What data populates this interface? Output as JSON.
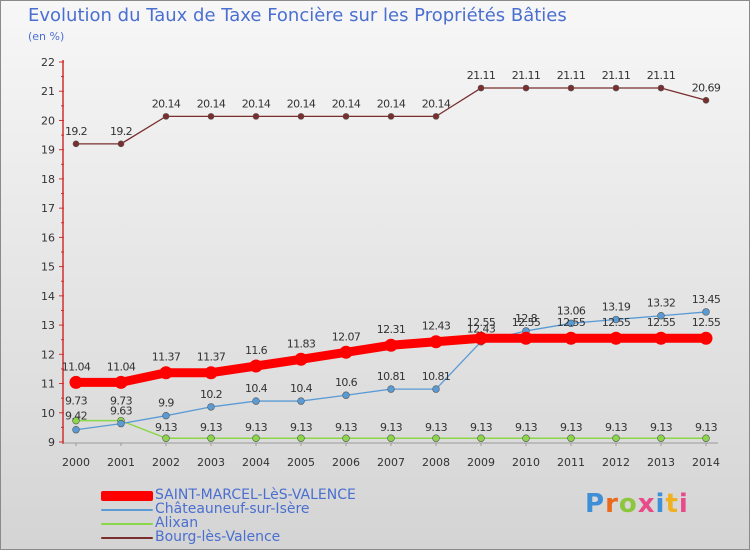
{
  "title": "Evolution du Taux de Taxe Foncière sur les Propriétés Bâties",
  "unit": "(en %)",
  "logo": {
    "text": "Proxiti",
    "colors": [
      "#3f8fd8",
      "#e86a1a",
      "#8cc63f",
      "#e84a8a",
      "#3f8fd8",
      "#f0b020",
      "#e84a8a"
    ]
  },
  "chart_data": {
    "type": "line",
    "title": "Evolution du Taux de Taxe Foncière sur les Propriétés Bâties",
    "ylabel": "(en %)",
    "xlabel": "",
    "ylim": [
      9,
      22
    ],
    "yticks": [
      9,
      10,
      11,
      12,
      13,
      14,
      15,
      16,
      17,
      18,
      19,
      20,
      21,
      22
    ],
    "x": [
      "2000",
      "2001",
      "2002",
      "2003",
      "2004",
      "2005",
      "2006",
      "2007",
      "2008",
      "2009",
      "2010",
      "2011",
      "2012",
      "2013",
      "2014"
    ],
    "grid": false,
    "legend": "bottom-left",
    "series": [
      {
        "name": "SAINT-MARCEL-LèS-VALENCE",
        "color": "#ff0000",
        "values": [
          11.04,
          11.04,
          11.37,
          11.37,
          11.6,
          11.83,
          12.07,
          12.31,
          12.43,
          12.55,
          12.55,
          12.55,
          12.55,
          12.55,
          12.55
        ],
        "labels": [
          "11.04",
          "11.04",
          "11.37",
          "11.37",
          "11.6",
          "11.83",
          "12.07",
          "12.31",
          "12.43",
          "12.55",
          "12.55",
          "12.55",
          "12.55",
          "12.55",
          "12.55"
        ]
      },
      {
        "name": "Châteauneuf-sur-Isère",
        "color": "#5b9bd5",
        "values": [
          9.42,
          9.63,
          9.9,
          10.2,
          10.4,
          10.4,
          10.6,
          10.81,
          10.81,
          12.43,
          12.8,
          13.06,
          13.19,
          13.32,
          13.45
        ],
        "labels": [
          "9.42",
          "9.63",
          "9.9",
          "10.2",
          "10.4",
          "10.4",
          "10.6",
          "10.81",
          "10.81",
          "12.43",
          "12.8",
          "13.06",
          "13.19",
          "13.32",
          "13.45"
        ]
      },
      {
        "name": "Alixan",
        "color": "#8cd64a",
        "values": [
          9.73,
          9.73,
          9.13,
          9.13,
          9.13,
          9.13,
          9.13,
          9.13,
          9.13,
          9.13,
          9.13,
          9.13,
          9.13,
          9.13,
          9.13
        ],
        "labels": [
          "9.73",
          "9.73",
          "9.13",
          "9.13",
          "9.13",
          "9.13",
          "9.13",
          "9.13",
          "9.13",
          "9.13",
          "9.13",
          "9.13",
          "9.13",
          "9.13",
          "9.13"
        ]
      },
      {
        "name": "Bourg-lès-Valence",
        "color": "#7a2e2e",
        "values": [
          19.2,
          19.2,
          20.14,
          20.14,
          20.14,
          20.14,
          20.14,
          20.14,
          20.14,
          21.11,
          21.11,
          21.11,
          21.11,
          21.11,
          20.69
        ],
        "labels": [
          "19.2",
          "19.2",
          "20.14",
          "20.14",
          "20.14",
          "20.14",
          "20.14",
          "20.14",
          "20.14",
          "21.11",
          "21.11",
          "21.11",
          "21.11",
          "21.11",
          "20.69"
        ]
      }
    ]
  }
}
